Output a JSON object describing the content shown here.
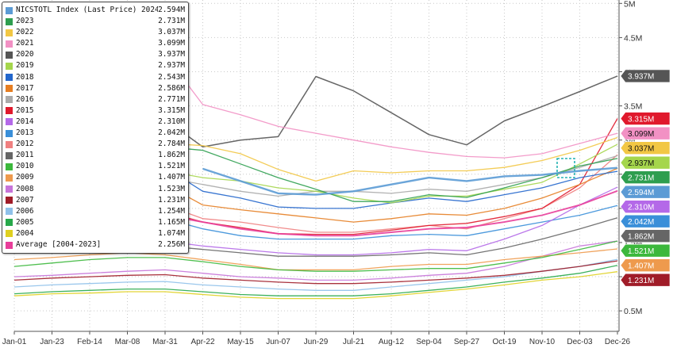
{
  "chart_data": {
    "type": "line",
    "title": "",
    "xlabel": "",
    "ylabel": "",
    "x_ticks": [
      "Jan-01",
      "Jan-23",
      "Feb-14",
      "Mar-08",
      "Mar-31",
      "Apr-22",
      "May-15",
      "Jun-07",
      "Jun-29",
      "Jul-21",
      "Aug-12",
      "Sep-04",
      "Sep-27",
      "Oct-19",
      "Nov-10",
      "Dec-03",
      "Dec-26"
    ],
    "y_ticks": [
      {
        "value": 5.0,
        "label": "5M"
      },
      {
        "value": 4.5,
        "label": "4.5M"
      },
      {
        "value": 4.0,
        "label": "4M"
      },
      {
        "value": 3.5,
        "label": "3.5M"
      },
      {
        "value": 3.0,
        "label": "3M"
      },
      {
        "value": 2.5,
        "label": "2.5M"
      },
      {
        "value": 2.0,
        "label": "2M"
      },
      {
        "value": 1.5,
        "label": "1.5M"
      },
      {
        "value": 1.0,
        "label": "1M"
      },
      {
        "value": 0.5,
        "label": "0.5M"
      }
    ],
    "ylim": [
      0.2,
      5.05
    ],
    "grid": true,
    "legend_placement": "top-left",
    "series": [
      {
        "name": "NICSTOTL Index (Last Price) 2024",
        "value_label": "2.594M",
        "color": "#5b9bd5",
        "line_width": 2.4,
        "values": [
          null,
          null,
          null,
          null,
          null,
          2.58,
          2.4,
          2.22,
          2.2,
          2.25,
          2.35,
          2.45,
          2.4,
          2.47,
          2.49,
          2.55,
          2.594
        ],
        "badge": "2.594M"
      },
      {
        "name": "2023",
        "value_label": "2.731M",
        "color": "#2e9e4f",
        "line_width": 1.3,
        "values": [
          2.8,
          2.82,
          2.84,
          2.88,
          2.9,
          2.85,
          2.65,
          2.45,
          2.28,
          2.1,
          2.1,
          2.2,
          2.16,
          2.3,
          2.45,
          2.62,
          2.731
        ],
        "badge": "2.731M"
      },
      {
        "name": "2022",
        "value_label": "3.037M",
        "color": "#f2c744",
        "line_width": 1.3,
        "values": [
          2.65,
          2.75,
          2.85,
          2.9,
          2.95,
          2.92,
          2.8,
          2.57,
          2.4,
          2.55,
          2.52,
          2.55,
          2.55,
          2.6,
          2.7,
          2.85,
          3.037
        ],
        "badge": "3.037M"
      },
      {
        "name": "2021",
        "value_label": "3.099M",
        "color": "#f291c4",
        "line_width": 1.3,
        "values": [
          3.5,
          3.9,
          4.2,
          4.3,
          4.25,
          3.52,
          3.37,
          3.2,
          3.1,
          3.0,
          2.9,
          2.82,
          2.76,
          2.74,
          2.8,
          2.95,
          3.099
        ],
        "badge": "3.099M"
      },
      {
        "name": "2020",
        "value_label": "3.937M",
        "color": "#555555",
        "line_width": 1.5,
        "values": [
          2.45,
          2.5,
          2.55,
          2.7,
          3.3,
          2.9,
          3.0,
          3.05,
          3.93,
          3.72,
          3.4,
          3.08,
          2.93,
          3.28,
          3.49,
          3.71,
          3.937
        ],
        "badge": "3.937M"
      },
      {
        "name": "2019",
        "value_label": "2.937M",
        "color": "#a5d64c",
        "line_width": 1.3,
        "values": [
          2.4,
          2.45,
          2.5,
          2.5,
          2.55,
          2.45,
          2.4,
          2.3,
          2.25,
          2.15,
          2.08,
          2.18,
          2.18,
          2.28,
          2.38,
          2.65,
          2.937
        ],
        "badge": "2.937M"
      },
      {
        "name": "2018",
        "value_label": "2.543M",
        "color": "#2266cc",
        "line_width": 1.3,
        "values": [
          2.3,
          2.4,
          2.45,
          2.5,
          2.6,
          2.25,
          2.15,
          2.02,
          2.0,
          2.0,
          2.08,
          2.15,
          2.1,
          2.2,
          2.3,
          2.45,
          2.543
        ],
        "badge": ""
      },
      {
        "name": "2017",
        "value_label": "2.586M",
        "color": "#e67e22",
        "line_width": 1.3,
        "values": [
          2.05,
          2.15,
          2.25,
          2.3,
          2.35,
          2.05,
          1.98,
          1.92,
          1.86,
          1.8,
          1.85,
          1.92,
          1.9,
          2.0,
          2.15,
          2.35,
          2.586
        ],
        "badge": ""
      },
      {
        "name": "2016",
        "value_label": "2.771M",
        "color": "#aaaaaa",
        "line_width": 1.3,
        "values": [
          2.1,
          2.2,
          2.3,
          2.4,
          2.45,
          2.35,
          2.25,
          2.18,
          2.25,
          2.25,
          2.22,
          2.28,
          2.25,
          2.35,
          2.45,
          2.6,
          2.771
        ],
        "badge": ""
      },
      {
        "name": "2015",
        "value_label": "3.315M",
        "color": "#e0192c",
        "line_width": 1.3,
        "values": [
          1.75,
          1.8,
          1.9,
          1.95,
          1.95,
          1.8,
          1.72,
          1.63,
          1.62,
          1.62,
          1.68,
          1.75,
          1.78,
          1.88,
          2.0,
          2.35,
          3.315
        ],
        "badge": "3.315M"
      },
      {
        "name": "2014",
        "value_label": "2.310M",
        "color": "#b469e8",
        "line_width": 1.3,
        "values": [
          1.35,
          1.4,
          1.45,
          1.5,
          1.52,
          1.45,
          1.4,
          1.35,
          1.32,
          1.32,
          1.35,
          1.4,
          1.38,
          1.55,
          1.75,
          2.05,
          2.31
        ],
        "badge": "2.310M"
      },
      {
        "name": "2013",
        "value_label": "2.042M",
        "color": "#3a8fd9",
        "line_width": 1.3,
        "values": [
          1.6,
          1.65,
          1.7,
          1.78,
          1.85,
          1.7,
          1.6,
          1.55,
          1.55,
          1.55,
          1.6,
          1.62,
          1.6,
          1.7,
          1.8,
          1.9,
          2.042
        ],
        "badge": "2.042M"
      },
      {
        "name": "2012",
        "value_label": "2.784M",
        "color": "#f08080",
        "line_width": 1.3,
        "values": [
          1.9,
          2.0,
          2.1,
          2.15,
          2.05,
          1.85,
          1.8,
          1.72,
          1.65,
          1.65,
          1.7,
          1.75,
          1.7,
          1.85,
          2.0,
          2.3,
          2.784
        ],
        "badge": ""
      },
      {
        "name": "2011",
        "value_label": "1.862M",
        "color": "#666666",
        "line_width": 1.3,
        "values": [
          1.35,
          1.42,
          1.45,
          1.48,
          1.45,
          1.4,
          1.35,
          1.3,
          1.3,
          1.3,
          1.32,
          1.35,
          1.32,
          1.42,
          1.55,
          1.7,
          1.862
        ],
        "badge": "1.862M"
      },
      {
        "name": "2010",
        "value_label": "1.521M",
        "color": "#3cb83c",
        "line_width": 1.3,
        "values": [
          1.15,
          1.2,
          1.25,
          1.28,
          1.28,
          1.22,
          1.15,
          1.1,
          1.08,
          1.08,
          1.1,
          1.12,
          1.12,
          1.2,
          1.28,
          1.4,
          1.521
        ],
        "badge": "1.521M"
      },
      {
        "name": "2009",
        "value_label": "1.407M",
        "color": "#ee9a4d",
        "line_width": 1.3,
        "values": [
          1.25,
          1.28,
          1.32,
          1.35,
          1.32,
          1.25,
          1.18,
          1.1,
          1.1,
          1.1,
          1.15,
          1.18,
          1.18,
          1.25,
          1.3,
          1.35,
          1.407
        ],
        "badge": "1.407M"
      },
      {
        "name": "2008",
        "value_label": "1.523M",
        "color": "#c774d9",
        "line_width": 1.3,
        "values": [
          1.0,
          1.02,
          1.05,
          1.08,
          1.1,
          1.05,
          1.0,
          0.98,
          0.95,
          0.95,
          0.98,
          1.02,
          1.05,
          1.15,
          1.3,
          1.45,
          1.523
        ],
        "badge": ""
      },
      {
        "name": "2007",
        "value_label": "1.231M",
        "color": "#a01c28",
        "line_width": 1.3,
        "values": [
          0.95,
          0.98,
          1.0,
          1.02,
          1.03,
          0.98,
          0.95,
          0.92,
          0.9,
          0.9,
          0.92,
          0.95,
          0.98,
          1.02,
          1.08,
          1.15,
          1.231
        ],
        "badge": "1.231M"
      },
      {
        "name": "2006",
        "value_label": "1.254M",
        "color": "#8fc1ea",
        "line_width": 1.3,
        "values": [
          0.85,
          0.88,
          0.9,
          0.92,
          0.93,
          0.88,
          0.85,
          0.82,
          0.8,
          0.8,
          0.85,
          0.9,
          0.95,
          1.0,
          1.08,
          1.15,
          1.254
        ],
        "badge": ""
      },
      {
        "name": "2005",
        "value_label": "1.165M",
        "color": "#27a84a",
        "line_width": 1.3,
        "values": [
          0.75,
          0.78,
          0.8,
          0.82,
          0.82,
          0.78,
          0.74,
          0.72,
          0.72,
          0.72,
          0.75,
          0.8,
          0.85,
          0.92,
          0.98,
          1.05,
          1.165
        ],
        "badge": ""
      },
      {
        "name": "2004",
        "value_label": "1.074M",
        "color": "#dfd020",
        "line_width": 1.3,
        "values": [
          0.72,
          0.75,
          0.76,
          0.78,
          0.78,
          0.74,
          0.7,
          0.68,
          0.68,
          0.68,
          0.72,
          0.77,
          0.82,
          0.88,
          0.95,
          1.0,
          1.074
        ],
        "badge": ""
      },
      {
        "name": "Average  [2004-2023]",
        "value_label": "2.256M",
        "color": "#e83e9a",
        "line_width": 1.9,
        "values": [
          1.8,
          1.82,
          1.85,
          1.88,
          1.9,
          1.8,
          1.7,
          1.63,
          1.6,
          1.6,
          1.65,
          1.7,
          1.72,
          1.8,
          1.9,
          2.05,
          2.256
        ],
        "badge": ""
      }
    ]
  }
}
